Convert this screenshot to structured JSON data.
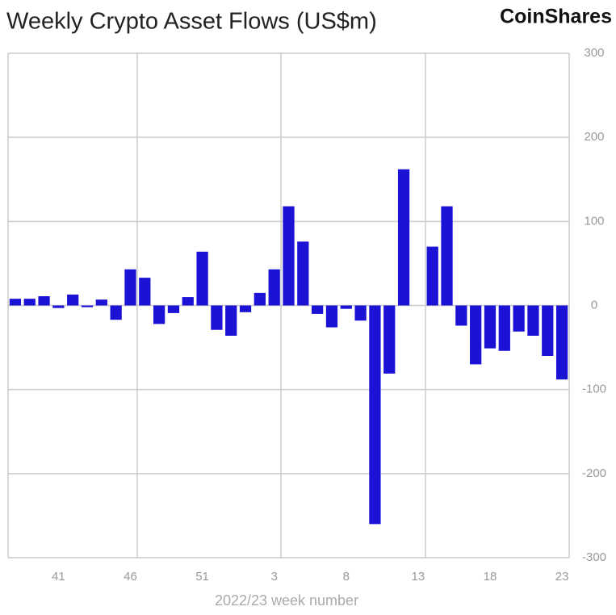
{
  "chart_data": {
    "type": "bar",
    "title": "Weekly Crypto Asset Flows (US$m)",
    "brand": "CoinShares",
    "x_label": "2022/23 week number",
    "categories": [
      null,
      null,
      null,
      "41",
      null,
      null,
      null,
      null,
      "46",
      null,
      null,
      null,
      null,
      "51",
      null,
      null,
      null,
      null,
      "3",
      null,
      null,
      null,
      null,
      "8",
      null,
      null,
      null,
      null,
      "13",
      null,
      null,
      null,
      null,
      "18",
      null,
      null,
      null,
      null,
      "23"
    ],
    "values": [
      8,
      8,
      11,
      -3,
      13,
      -2,
      7,
      -17,
      43,
      33,
      -22,
      -9,
      10,
      64,
      -29,
      -36,
      -8,
      15,
      43,
      118,
      76,
      -10,
      -26,
      -4,
      -18,
      -260,
      -81,
      162,
      0,
      70,
      118,
      -24,
      -70,
      -51,
      -54,
      -31,
      -36,
      -60,
      -88
    ],
    "color": "#1c12d6",
    "ylim": [
      -300,
      300
    ],
    "yticks": [
      300,
      200,
      100,
      0,
      -100,
      -200,
      -300
    ],
    "grid": true
  }
}
